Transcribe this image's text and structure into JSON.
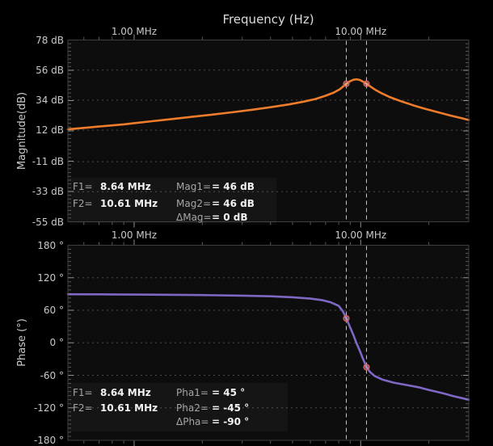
{
  "title": "Frequency (Hz)",
  "colors": {
    "background": "#000000",
    "plot_bg": "#0d0d0d",
    "grid": "#6b6b6b",
    "tick": "#a0a0a0",
    "border": "#3f3f3f",
    "cursor_line": "#e8e8e8",
    "marker": "#d96060",
    "label": "#c9c9c9",
    "title_text": "#dcdcdc",
    "readout_label": "#a6a6a6",
    "readout_value": "#f2f2f2",
    "magnitude_trace": "#ef7c2b",
    "phase_trace": "#7e68c4"
  },
  "frequency_axis": {
    "scale": "log",
    "unit": "MHz",
    "min_mhz": 0.51,
    "max_mhz": 30,
    "tick_labels": [
      "1.00 MHz",
      "10.00 MHz"
    ],
    "tick_label_mhz": [
      1.0,
      10.0
    ],
    "minor_tick_mhz": [
      0.6,
      0.7,
      0.8,
      0.9,
      2,
      3,
      4,
      5,
      6,
      7,
      8,
      9,
      20
    ]
  },
  "cursors": {
    "f1_mhz": 8.64,
    "f2_mhz": 10.61
  },
  "magnitude_panel": {
    "ylabel": "Magnitude(dB)",
    "ytick_labels": [
      "78 dB",
      "56 dB",
      "34 dB",
      "12 dB",
      "-11 dB",
      "-33 dB",
      "-55 dB"
    ],
    "ytick_values": [
      78,
      56,
      34,
      12,
      -11,
      -33,
      -55
    ],
    "readout": {
      "rows": [
        {
          "c1_label": "F1=",
          "c1_value": "8.64 MHz",
          "c2_label": "Mag1=",
          "c2_value": "= 46 dB"
        },
        {
          "c1_label": "F2=",
          "c1_value": "10.61 MHz",
          "c2_label": "Mag2=",
          "c2_value": "= 46 dB"
        },
        {
          "c1_label": "",
          "c1_value": "",
          "c2_label": "ΔMag=",
          "c2_value": "= 0 dB"
        }
      ]
    }
  },
  "phase_panel": {
    "ylabel": "Phase (°)",
    "ytick_labels": [
      "180 °",
      "120 °",
      "60 °",
      "0 °",
      "-60 °",
      "-120 °",
      "-180 °"
    ],
    "ytick_values": [
      180,
      120,
      60,
      0,
      -60,
      -120,
      -180
    ],
    "readout": {
      "rows": [
        {
          "c1_label": "F1=",
          "c1_value": "8.64 MHz",
          "c2_label": "Pha1=",
          "c2_value": "= 45 °"
        },
        {
          "c1_label": "F2=",
          "c1_value": "10.61 MHz",
          "c2_label": "Pha2=",
          "c2_value": "= -45 °"
        },
        {
          "c1_label": "",
          "c1_value": "",
          "c2_label": "ΔPha=",
          "c2_value": "= -90 °"
        }
      ]
    }
  },
  "chart_data": [
    {
      "type": "line",
      "name": "Magnitude",
      "color": "#ef7c2b",
      "x_unit": "MHz",
      "y_unit": "dB",
      "x_scale": "log",
      "xlim": [
        0.51,
        30
      ],
      "ylim": [
        -55,
        78
      ],
      "yticks": [
        78,
        56,
        34,
        12,
        -11,
        -33,
        -55
      ],
      "xlabel": "Frequency (Hz)",
      "ylabel": "Magnitude(dB)",
      "x": [
        0.51,
        0.6,
        0.7,
        0.8,
        0.9,
        1.0,
        1.2,
        1.5,
        1.8,
        2.2,
        2.7,
        3.3,
        4.0,
        4.8,
        5.6,
        6.3,
        7.0,
        7.6,
        8.1,
        8.64,
        9.0,
        9.3,
        9.57,
        9.9,
        10.2,
        10.61,
        11.0,
        11.6,
        12.4,
        13.5,
        15.0,
        17.0,
        19.0,
        22.0,
        25.0,
        28.0,
        30.0
      ],
      "y": [
        12.6,
        13.7,
        14.7,
        15.5,
        16.3,
        17.2,
        18.6,
        20.3,
        21.8,
        23.4,
        25.1,
        26.9,
        28.8,
        30.8,
        32.9,
        34.8,
        37.2,
        39.5,
        42.0,
        46.0,
        47.9,
        48.9,
        49.3,
        48.8,
        47.7,
        46.0,
        44.1,
        41.6,
        38.9,
        36.1,
        33.3,
        30.3,
        27.9,
        25.1,
        22.7,
        20.7,
        19.5
      ],
      "markers": [
        {
          "x": 8.64,
          "y": 46
        },
        {
          "x": 10.61,
          "y": 46
        }
      ],
      "cursors_x": [
        8.64,
        10.61
      ]
    },
    {
      "type": "line",
      "name": "Phase",
      "color": "#7e68c4",
      "x_unit": "MHz",
      "y_unit": "deg",
      "x_scale": "log",
      "xlim": [
        0.51,
        30
      ],
      "ylim": [
        -180,
        180
      ],
      "yticks": [
        180,
        120,
        60,
        0,
        -60,
        -120,
        -180
      ],
      "xlabel": "Frequency (Hz)",
      "ylabel": "Phase (°)",
      "x": [
        0.51,
        0.8,
        1.2,
        2.0,
        3.0,
        4.0,
        5.0,
        6.0,
        6.8,
        7.4,
        8.0,
        8.35,
        8.64,
        9.0,
        9.3,
        9.57,
        9.9,
        10.2,
        10.61,
        11.0,
        11.5,
        12.5,
        14.0,
        16.0,
        18.0,
        20.0,
        23.0,
        26.0,
        30.0
      ],
      "y": [
        89.5,
        89.2,
        88.8,
        88.0,
        87.0,
        85.8,
        84.0,
        81.5,
        78.5,
        74.5,
        68.0,
        58.0,
        45.0,
        28.0,
        14.0,
        0.0,
        -14.0,
        -28.0,
        -45.0,
        -54.0,
        -61.0,
        -68.0,
        -73.5,
        -78.0,
        -82.0,
        -87.0,
        -93.0,
        -99.0,
        -105.0
      ],
      "markers": [
        {
          "x": 8.64,
          "y": 45
        },
        {
          "x": 10.61,
          "y": -45
        }
      ],
      "cursors_x": [
        8.64,
        10.61
      ]
    }
  ]
}
